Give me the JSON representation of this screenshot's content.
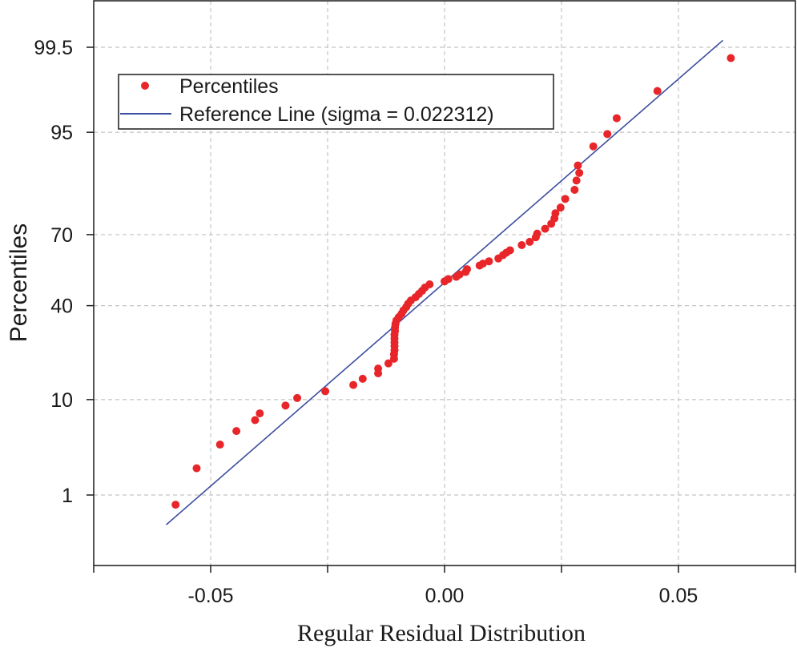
{
  "chart_data": {
    "type": "scatter",
    "title": "",
    "xlabel": "Regular Residual Distribution",
    "ylabel": "Percentiles",
    "xlim": [
      -0.075,
      0.075
    ],
    "x_ticks": [
      -0.05,
      0.0,
      0.05
    ],
    "x_tick_labels": [
      "-0.05",
      "0.00",
      "0.05"
    ],
    "x_minor_ticks": [
      -0.075,
      -0.025,
      0.025,
      0.075
    ],
    "y_scale": "normal-probability",
    "y_ticks": [
      1,
      10,
      40,
      70,
      95,
      99.5
    ],
    "y_tick_labels": [
      "1",
      "10",
      "40",
      "70",
      "95",
      "99.5"
    ],
    "grid": true,
    "legend_position": "top-left",
    "colors": {
      "points": "#e8262a",
      "line": "#3c4ea0",
      "grid": "#c4c4c4",
      "axis": "#1a1a1a"
    },
    "series": [
      {
        "name": "Percentiles",
        "kind": "scatter",
        "points": [
          [
            -0.0575,
            0.75
          ],
          [
            -0.053,
            2.1
          ],
          [
            -0.048,
            3.8
          ],
          [
            -0.0445,
            5.2
          ],
          [
            -0.0405,
            6.6
          ],
          [
            -0.0395,
            7.6
          ],
          [
            -0.034,
            8.9
          ],
          [
            -0.0315,
            10.3
          ],
          [
            -0.0255,
            11.7
          ],
          [
            -0.0195,
            13.1
          ],
          [
            -0.0175,
            14.6
          ],
          [
            -0.0142,
            16.0
          ],
          [
            -0.0142,
            17.3
          ],
          [
            -0.012,
            18.8
          ],
          [
            -0.0108,
            20.2
          ],
          [
            -0.0108,
            21.6
          ],
          [
            -0.0107,
            22.9
          ],
          [
            -0.0107,
            24.3
          ],
          [
            -0.0107,
            25.6
          ],
          [
            -0.0107,
            27.0
          ],
          [
            -0.0107,
            28.4
          ],
          [
            -0.0106,
            29.8
          ],
          [
            -0.0106,
            31.1
          ],
          [
            -0.0105,
            32.5
          ],
          [
            -0.0103,
            33.9
          ],
          [
            -0.0098,
            35.2
          ],
          [
            -0.0092,
            36.6
          ],
          [
            -0.0088,
            38.0
          ],
          [
            -0.0082,
            39.4
          ],
          [
            -0.0078,
            40.8
          ],
          [
            -0.0072,
            42.2
          ],
          [
            -0.0062,
            43.6
          ],
          [
            -0.0055,
            45.0
          ],
          [
            -0.0048,
            46.4
          ],
          [
            -0.0042,
            47.8
          ],
          [
            -0.0032,
            49.2
          ],
          [
            0.0,
            50.5
          ],
          [
            0.0008,
            51.5
          ],
          [
            0.0025,
            52.5
          ],
          [
            0.0032,
            53.5
          ],
          [
            0.0045,
            54.6
          ],
          [
            0.0048,
            55.8
          ],
          [
            0.0075,
            57.4
          ],
          [
            0.0082,
            58.2
          ],
          [
            0.0095,
            59.2
          ],
          [
            0.0115,
            60.4
          ],
          [
            0.0125,
            61.8
          ],
          [
            0.0132,
            62.8
          ],
          [
            0.014,
            63.8
          ],
          [
            0.0165,
            65.9
          ],
          [
            0.0182,
            67.2
          ],
          [
            0.0195,
            69.0
          ],
          [
            0.0198,
            70.4
          ],
          [
            0.0215,
            72.2
          ],
          [
            0.0228,
            74.0
          ],
          [
            0.0235,
            75.9
          ],
          [
            0.0237,
            77.6
          ],
          [
            0.0248,
            79.4
          ],
          [
            0.0258,
            82.0
          ],
          [
            0.0278,
            84.5
          ],
          [
            0.0282,
            86.8
          ],
          [
            0.0288,
            88.5
          ],
          [
            0.0285,
            90.0
          ],
          [
            0.0318,
            93.2
          ],
          [
            0.0348,
            94.8
          ],
          [
            0.0368,
            96.4
          ],
          [
            0.0455,
            98.2
          ],
          [
            0.0612,
            99.3
          ]
        ]
      },
      {
        "name": "Reference Line (sigma = 0.022312)",
        "kind": "line",
        "sigma": 0.022312,
        "points": [
          [
            -0.0595,
            0.4
          ],
          [
            0.0595,
            99.6
          ]
        ]
      }
    ]
  }
}
